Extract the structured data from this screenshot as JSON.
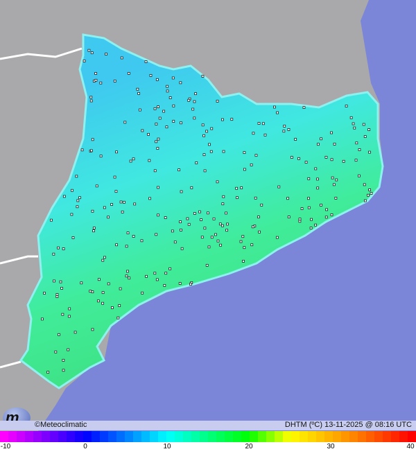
{
  "credit": "©Meteoclimatic",
  "stamp": "DHTM (ºC)  13-11-2025 @ 08:16 UTC",
  "colors": {
    "sea": "#7b86d8",
    "land_outside": "#a9a9ab",
    "region": "#4fe0e0",
    "border": "#ffffff"
  },
  "legend": {
    "min": -10,
    "max": 40,
    "tick_labels": [
      "-10",
      "0",
      "10",
      "20",
      "30",
      "40"
    ]
  },
  "logo": "m"
}
